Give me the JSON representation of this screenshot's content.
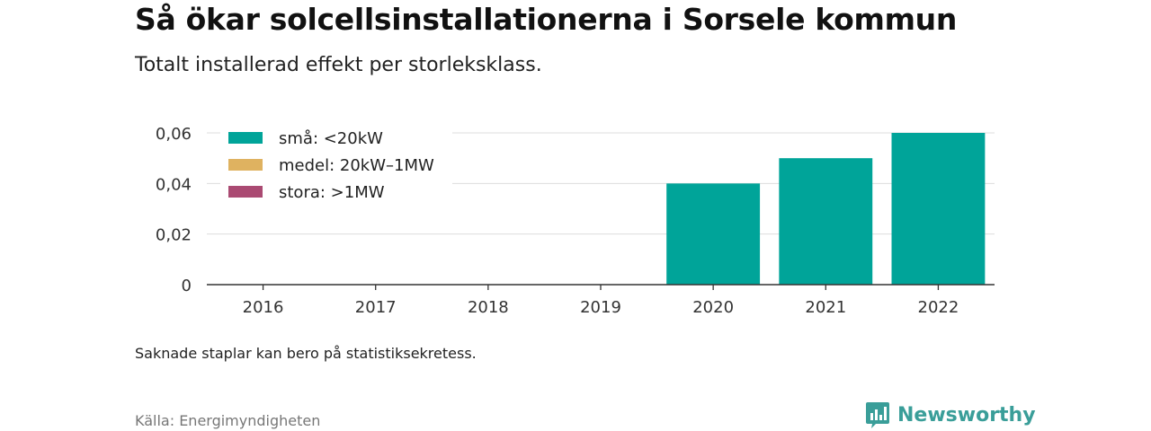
{
  "header": {
    "title": "Så ökar solcellsinstallationerna i Sorsele kommun",
    "subtitle": "Totalt installerad effekt per storleksklass."
  },
  "footer": {
    "note": "Saknade staplar kan bero på statistiksekretess.",
    "source": "Källa: Energimyndigheten",
    "brand": "Newsworthy",
    "brand_icon": "bar-chart-logo-icon",
    "brand_color": "#3a9e99"
  },
  "chart_data": {
    "type": "bar",
    "stacked": true,
    "categories": [
      "2016",
      "2017",
      "2018",
      "2019",
      "2020",
      "2021",
      "2022"
    ],
    "series": [
      {
        "name": "små: <20kW",
        "color": "#00a499",
        "values": [
          0,
          0,
          0,
          0,
          0.04,
          0.05,
          0.06
        ]
      },
      {
        "name": "medel: 20kW–1MW",
        "color": "#dfb260",
        "values": [
          0,
          0,
          0,
          0,
          0,
          0,
          0
        ]
      },
      {
        "name": "stora: >1MW",
        "color": "#aa4a72",
        "values": [
          0,
          0,
          0,
          0,
          0,
          0,
          0
        ]
      }
    ],
    "ylim": [
      0,
      0.06
    ],
    "yticks": [
      0,
      0.02,
      0.04,
      0.06
    ],
    "ytick_labels": [
      "0",
      "0,02",
      "0,04",
      "0,06"
    ],
    "grid": true,
    "legend_position": "top-left"
  }
}
